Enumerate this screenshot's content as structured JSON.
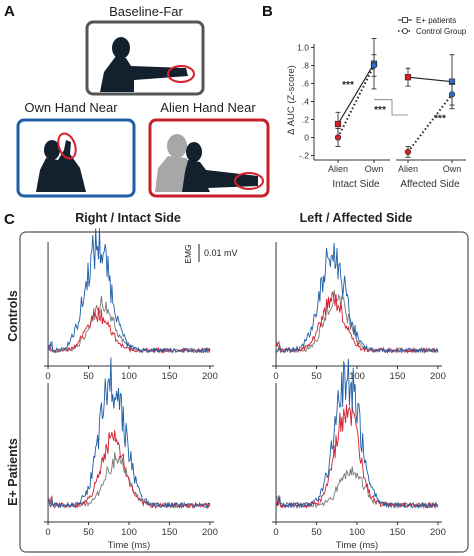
{
  "panels": {
    "A": {
      "letter": "A",
      "labels": {
        "baseline": "Baseline-Far",
        "own": "Own Hand Near",
        "alien": "Alien Hand Near"
      },
      "frame_colors": {
        "baseline": "#555555",
        "own": "#1f5fa8",
        "alien": "#c8202a"
      },
      "highlight_color": "#d8202a"
    },
    "B": {
      "letter": "B"
    },
    "C": {
      "letter": "C",
      "col_titles": [
        "Right / Intact Side",
        "Left / Affected Side"
      ],
      "row_titles": [
        "Controls",
        "E+ Patients"
      ],
      "scalebar_label": "EMG",
      "scalebar_value": "0.01 mV",
      "xlabel": "Time (ms)"
    }
  },
  "chart_data": [
    {
      "id": "B",
      "type": "line",
      "ylabel": "Δ AUC (Z-score)",
      "yticks": [
        -0.2,
        0,
        0.2,
        0.4,
        0.6,
        0.8,
        1.0
      ],
      "ytick_labels": [
        "-.2",
        "0",
        ".2",
        ".4",
        ".6",
        ".8",
        "1.0"
      ],
      "ylim": [
        -0.25,
        1.15
      ],
      "groups": [
        "Intact Side",
        "Affected Side"
      ],
      "categories": [
        "Alien",
        "Own"
      ],
      "legend": [
        "E+ patients",
        "Control Group"
      ],
      "legend_placement": "top-right",
      "series": [
        {
          "name": "E+ patients",
          "style": "solid",
          "intact": [
            0.15,
            0.82
          ],
          "affected": [
            0.67,
            0.62
          ]
        },
        {
          "name": "Control Group",
          "style": "dotted",
          "intact": [
            0.0,
            0.8
          ],
          "affected": [
            -0.16,
            0.48
          ]
        }
      ],
      "errors": {
        "E+ patients": {
          "intact": [
            0.13,
            0.28
          ],
          "affected": [
            0.1,
            0.3
          ]
        },
        "Control Group": {
          "intact": [
            0.1,
            0.12
          ],
          "affected": [
            0.06,
            0.12
          ]
        }
      },
      "point_colors": {
        "alien": "#d8202a",
        "own": "#2f6fc0"
      },
      "significance": "***"
    },
    {
      "id": "C",
      "type": "line",
      "x": [
        0,
        50,
        100,
        150,
        200
      ],
      "xtick_labels": [
        "0",
        "50",
        "100",
        "150",
        "200"
      ],
      "xlim": [
        -5,
        205
      ],
      "series_colors": {
        "blue": "#1f5fa8",
        "red": "#d42030",
        "gray": "#7a7a7a"
      },
      "subplots": [
        {
          "name": "controls-intact",
          "peaks": {
            "blue": 0.95,
            "red": 0.35,
            "gray": 0.45
          },
          "peak_x": 62
        },
        {
          "name": "controls-affected",
          "peaks": {
            "blue": 0.85,
            "red": 0.48,
            "gray": 0.52
          },
          "peak_x": 70
        },
        {
          "name": "patients-intact",
          "peaks": {
            "blue": 1.0,
            "red": 0.55,
            "gray": 0.38
          },
          "peak_x": 80
        },
        {
          "name": "patients-affected",
          "peaks": {
            "blue": 1.0,
            "red": 0.82,
            "gray": 0.3
          },
          "peak_x": 88
        }
      ]
    }
  ]
}
